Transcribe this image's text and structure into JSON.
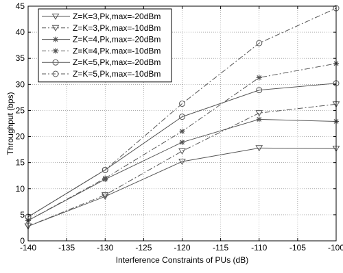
{
  "chart_data": {
    "type": "line",
    "title": "",
    "xlabel": "Interference Constraints of PUs (dB)",
    "ylabel": "Throughput (bps)",
    "xlim": [
      -140,
      -100
    ],
    "ylim": [
      0,
      45
    ],
    "x": [
      -140,
      -130,
      -120,
      -110,
      -100
    ],
    "xticks": [
      "-140",
      "-135",
      "-130",
      "-125",
      "-120",
      "-115",
      "-110",
      "-105",
      "-100"
    ],
    "yticks": [
      "0",
      "5",
      "10",
      "15",
      "20",
      "25",
      "30",
      "35",
      "40",
      "45"
    ],
    "grid": true,
    "legend_position": "top-left",
    "series": [
      {
        "name": "Z=K=3,Pk,max=-20dBm",
        "marker": "triangle-down",
        "line_style": "solid",
        "values": [
          2.8,
          8.5,
          15.2,
          17.8,
          17.7
        ]
      },
      {
        "name": "Z=K=3,Pk,max=-10dBm",
        "marker": "triangle-down",
        "line_style": "dashdot",
        "values": [
          2.8,
          8.8,
          17.2,
          24.5,
          26.2
        ]
      },
      {
        "name": "Z=K=4,Pk,max=-20dBm",
        "marker": "star",
        "line_style": "solid",
        "values": [
          3.9,
          11.8,
          18.9,
          23.3,
          22.9
        ]
      },
      {
        "name": "Z=K=4,Pk.max=-10dBm",
        "marker": "star",
        "line_style": "dashdot",
        "values": [
          3.9,
          12.0,
          21.0,
          31.3,
          34.0
        ]
      },
      {
        "name": "Z=K=5,Pk,max=-20dBm",
        "marker": "circle",
        "line_style": "solid",
        "values": [
          4.6,
          13.6,
          23.8,
          28.9,
          30.2
        ]
      },
      {
        "name": "Z=K=5,Pk,max=-10dBm",
        "marker": "circle",
        "line_style": "dashdot",
        "values": [
          4.6,
          13.6,
          26.3,
          37.9,
          44.6
        ]
      }
    ],
    "colors": {
      "line": "#555555",
      "grid": "#7f7f7f",
      "axes": "#000000",
      "background": "#ffffff"
    }
  }
}
